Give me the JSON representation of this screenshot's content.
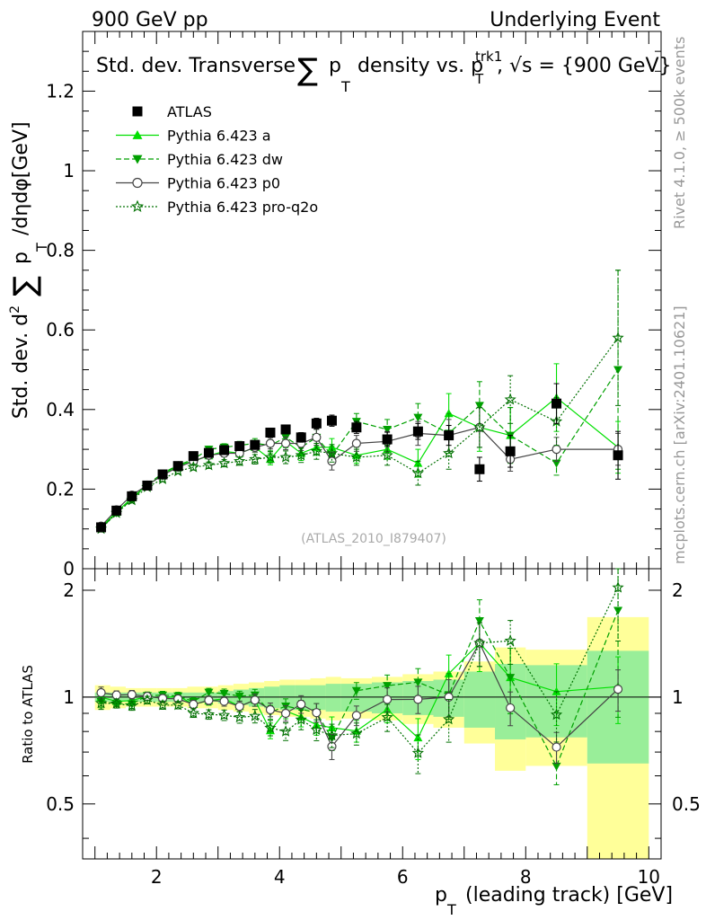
{
  "header": {
    "left": "900 GeV pp",
    "right": "Underlying Event"
  },
  "side": {
    "rivet": "Rivet 4.1.0, ≥ 500k events",
    "mcplots": "mcplots.cern.ch [arXiv:2401.10621]"
  },
  "title": {
    "part1": "Std. dev. Transverse",
    "sum": "∑",
    "p": "p",
    "t": "T",
    "part2": "density vs. p",
    "trk": "trk1",
    "part3": ", √s = {900 GeV}"
  },
  "watermark": "(ATLAS_2010_I879407)",
  "colors": {
    "atlas": "#000000",
    "pythia_a": "#00e000",
    "pythia_dw": "#00a000",
    "pythia_p0": "#444444",
    "pythia_q2o": "#007000",
    "band_yellow": "#ffff99",
    "band_green": "#99ee99"
  },
  "chart_data": {
    "type": "line",
    "xlabel": "p_T (leading track) [GeV]",
    "xlabel_parts": {
      "p": "p",
      "t": "T",
      "rest": "(leading track) [GeV]"
    },
    "ylabel": "Std. dev. d²∑p_T/dηdφ[GeV]",
    "ylabel_parts": {
      "pre": "Std. dev. d",
      "sup": "2",
      "sum": "∑",
      "p": "p",
      "t": "T",
      "post": "/dηdφ[GeV]"
    },
    "ratio_ylabel": "Ratio to ATLAS",
    "xlim": [
      0.8,
      10.2
    ],
    "ylim": [
      0,
      1.35
    ],
    "ratio_ylim": [
      0.35,
      2.3
    ],
    "xticks": [
      "2",
      "4",
      "6",
      "8",
      "10"
    ],
    "yticks": [
      "0",
      "0.2",
      "0.4",
      "0.6",
      "0.8",
      "1",
      "1.2"
    ],
    "ratio_yticks": [
      "0.5",
      "1",
      "2"
    ],
    "x": [
      1.1,
      1.35,
      1.6,
      1.85,
      2.1,
      2.35,
      2.6,
      2.85,
      3.1,
      3.35,
      3.6,
      3.85,
      4.1,
      4.35,
      4.6,
      4.85,
      5.25,
      5.75,
      6.25,
      6.75,
      7.25,
      7.75,
      8.5,
      9.5
    ],
    "x_edges": [
      1.0,
      1.25,
      1.5,
      1.75,
      2.0,
      2.25,
      2.5,
      2.75,
      3.0,
      3.25,
      3.5,
      3.75,
      4.0,
      4.25,
      4.5,
      4.75,
      5.0,
      5.5,
      6.0,
      6.5,
      7.0,
      7.5,
      8.0,
      9.0,
      10.0
    ],
    "ratio_band_yellow": [
      0.08,
      0.07,
      0.06,
      0.06,
      0.06,
      0.06,
      0.07,
      0.07,
      0.08,
      0.09,
      0.1,
      0.11,
      0.12,
      0.12,
      0.13,
      0.14,
      0.13,
      0.14,
      0.16,
      0.18,
      0.26,
      0.38,
      0.36,
      0.68
    ],
    "ratio_band_green": [
      0.03,
      0.03,
      0.03,
      0.03,
      0.03,
      0.03,
      0.03,
      0.03,
      0.04,
      0.05,
      0.06,
      0.07,
      0.08,
      0.08,
      0.08,
      0.09,
      0.09,
      0.1,
      0.11,
      0.12,
      0.18,
      0.24,
      0.23,
      0.35
    ],
    "legend_position": "top-left",
    "series": [
      {
        "name": "ATLAS",
        "marker": "square",
        "line": "none",
        "color": "#000000",
        "values": [
          0.104,
          0.146,
          0.182,
          0.209,
          0.237,
          0.258,
          0.283,
          0.291,
          0.298,
          0.308,
          0.311,
          0.342,
          0.35,
          0.33,
          0.365,
          0.372,
          0.355,
          0.325,
          0.345,
          0.335,
          0.25,
          0.295,
          0.415,
          0.285
        ],
        "errors": [
          0.005,
          0.006,
          0.006,
          0.006,
          0.006,
          0.006,
          0.007,
          0.007,
          0.007,
          0.008,
          0.009,
          0.01,
          0.011,
          0.012,
          0.013,
          0.014,
          0.015,
          0.018,
          0.02,
          0.025,
          0.03,
          0.04,
          0.05,
          0.06
        ]
      },
      {
        "name": "Pythia 6.423 a",
        "marker": "triangle-up",
        "line": "solid",
        "color": "#00e000",
        "values": [
          0.104,
          0.142,
          0.178,
          0.21,
          0.235,
          0.26,
          0.27,
          0.284,
          0.295,
          0.29,
          0.305,
          0.275,
          0.32,
          0.29,
          0.305,
          0.305,
          0.285,
          0.3,
          0.265,
          0.39,
          0.355,
          0.335,
          0.43,
          0.305
        ],
        "errors": [
          0.004,
          0.004,
          0.005,
          0.005,
          0.006,
          0.006,
          0.007,
          0.008,
          0.009,
          0.01,
          0.012,
          0.014,
          0.016,
          0.018,
          0.02,
          0.022,
          0.02,
          0.025,
          0.035,
          0.05,
          0.06,
          0.07,
          0.085,
          0.065
        ]
      },
      {
        "name": "Pythia 6.423 dw",
        "marker": "triangle-down",
        "line": "dashed",
        "color": "#00a000",
        "values": [
          0.101,
          0.14,
          0.174,
          0.211,
          0.24,
          0.26,
          0.275,
          0.3,
          0.305,
          0.31,
          0.315,
          0.31,
          0.33,
          0.305,
          0.33,
          0.285,
          0.37,
          0.35,
          0.38,
          0.34,
          0.41,
          0.335,
          0.265,
          0.5
        ],
        "errors": [
          0.004,
          0.004,
          0.005,
          0.005,
          0.006,
          0.006,
          0.007,
          0.008,
          0.009,
          0.01,
          0.012,
          0.014,
          0.016,
          0.018,
          0.02,
          0.022,
          0.02,
          0.025,
          0.035,
          0.05,
          0.06,
          0.07,
          0.03,
          0.25
        ]
      },
      {
        "name": "Pythia 6.423 p0",
        "marker": "open-circle",
        "line": "solid",
        "color": "#444444",
        "values": [
          0.107,
          0.148,
          0.185,
          0.21,
          0.235,
          0.255,
          0.27,
          0.285,
          0.29,
          0.29,
          0.305,
          0.315,
          0.315,
          0.315,
          0.33,
          0.27,
          0.315,
          0.32,
          0.34,
          0.335,
          0.355,
          0.275,
          0.3,
          0.3
        ],
        "errors": [
          0.004,
          0.004,
          0.005,
          0.005,
          0.006,
          0.006,
          0.007,
          0.008,
          0.009,
          0.01,
          0.012,
          0.014,
          0.016,
          0.018,
          0.02,
          0.022,
          0.02,
          0.025,
          0.03,
          0.04,
          0.05,
          0.03,
          0.03,
          0.04
        ]
      },
      {
        "name": "Pythia 6.423 pro-q2o",
        "marker": "star",
        "line": "dotted",
        "color": "#007000",
        "values": [
          0.1,
          0.14,
          0.172,
          0.205,
          0.225,
          0.245,
          0.255,
          0.26,
          0.265,
          0.27,
          0.275,
          0.28,
          0.28,
          0.285,
          0.295,
          0.29,
          0.28,
          0.285,
          0.24,
          0.29,
          0.355,
          0.425,
          0.37,
          0.58
        ],
        "errors": [
          0.004,
          0.004,
          0.005,
          0.005,
          0.006,
          0.006,
          0.007,
          0.008,
          0.009,
          0.01,
          0.012,
          0.014,
          0.016,
          0.018,
          0.02,
          0.022,
          0.02,
          0.025,
          0.03,
          0.04,
          0.05,
          0.06,
          0.06,
          0.17
        ]
      }
    ]
  }
}
